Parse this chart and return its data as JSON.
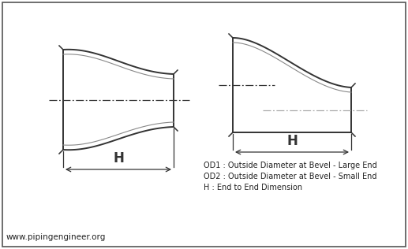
{
  "bg_color": "#ffffff",
  "border_color": "#555555",
  "line_color": "#333333",
  "centerline_color": "#555555",
  "gray_centerline_color": "#aaaaaa",
  "legend_lines": [
    "OD1 : Outside Diameter at Bevel - Large End",
    "OD2 : Outside Diameter at Bevel - Small End",
    "H : End to End Dimension"
  ],
  "website": "www.pipingengineer.org",
  "H_label": "H"
}
